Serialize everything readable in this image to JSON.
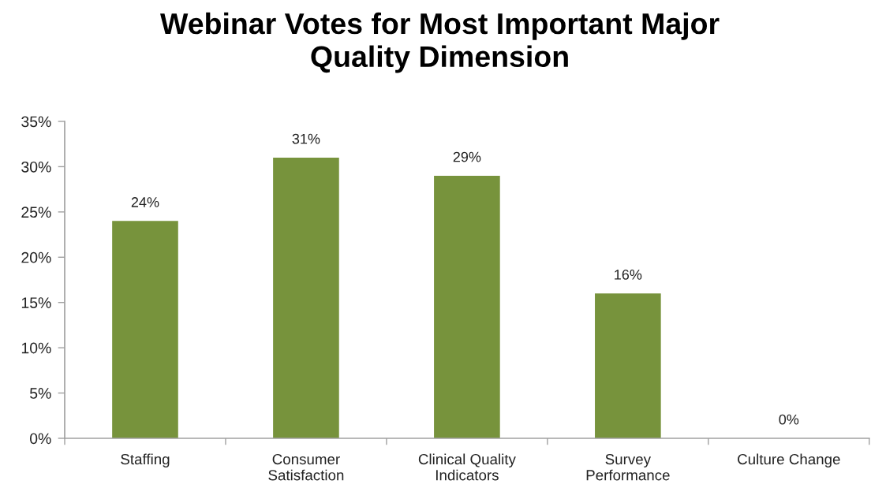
{
  "chart_data": {
    "type": "bar",
    "title": "Webinar Votes for Most Important Major\nQuality Dimension",
    "categories": [
      "Staffing",
      "Consumer\nSatisfaction",
      "Clinical Quality\nIndicators",
      "Survey\nPerformance",
      "Culture Change"
    ],
    "values": [
      24,
      31,
      29,
      16,
      0
    ],
    "value_labels": [
      "24%",
      "31%",
      "29%",
      "16%",
      "0%"
    ],
    "color": "#77933c",
    "ylim": [
      0,
      35
    ],
    "yticks": [
      {
        "value": 0,
        "label": "0%"
      },
      {
        "value": 5,
        "label": "5%"
      },
      {
        "value": 10,
        "label": "10%"
      },
      {
        "value": 15,
        "label": "15%"
      },
      {
        "value": 20,
        "label": "20%"
      },
      {
        "value": 25,
        "label": "25%"
      },
      {
        "value": 30,
        "label": "30%"
      },
      {
        "value": 35,
        "label": "35%"
      }
    ],
    "grid": false
  }
}
